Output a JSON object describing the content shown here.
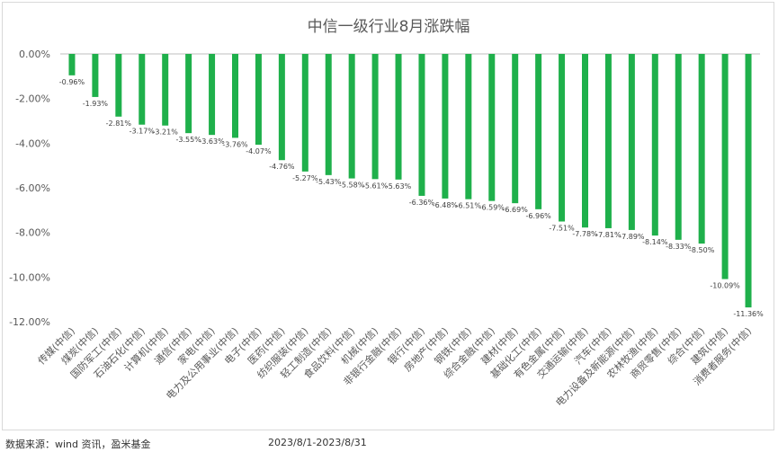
{
  "chart_data": {
    "type": "bar",
    "title": "中信一级行业8月涨跌幅",
    "xlabel": "",
    "ylabel": "",
    "ylim": [
      -12,
      0
    ],
    "yticks": [
      0,
      -2,
      -4,
      -6,
      -8,
      -10,
      -12
    ],
    "ytick_labels": [
      "0.00%",
      "-2.00%",
      "-4.00%",
      "-6.00%",
      "-8.00%",
      "-10.00%",
      "-12.00%"
    ],
    "grid": false,
    "legend": "none",
    "bar_color": "#1fb04b",
    "categories": [
      "传媒(中信)",
      "煤炭(中信)",
      "国防军工(中信)",
      "石油石化(中信)",
      "计算机(中信)",
      "通信(中信)",
      "家电(中信)",
      "电力及公用事业(中信)",
      "电子(中信)",
      "医药(中信)",
      "纺织服装(中信)",
      "轻工制造(中信)",
      "食品饮料(中信)",
      "机械(中信)",
      "非银行金融(中信)",
      "银行(中信)",
      "房地产(中信)",
      "钢铁(中信)",
      "综合金融(中信)",
      "建材(中信)",
      "基础化工(中信)",
      "有色金属(中信)",
      "交通运输(中信)",
      "汽车(中信)",
      "电力设备及新能源(中信)",
      "农林牧渔(中信)",
      "商贸零售(中信)",
      "综合(中信)",
      "建筑(中信)",
      "消费者服务(中信)"
    ],
    "values": [
      -0.96,
      -1.93,
      -2.81,
      -3.17,
      -3.21,
      -3.55,
      -3.63,
      -3.76,
      -4.07,
      -4.76,
      -5.27,
      -5.43,
      -5.58,
      -5.61,
      -5.63,
      -6.36,
      -6.48,
      -6.51,
      -6.59,
      -6.69,
      -6.96,
      -7.51,
      -7.78,
      -7.81,
      -7.89,
      -8.14,
      -8.33,
      -8.5,
      -10.09,
      -11.36
    ],
    "data_labels": [
      "-0.96%",
      "-1.93%",
      "-2.81%",
      "-3.17%",
      "-3.21%",
      "-3.55%",
      "-3.63%",
      "-3.76%",
      "-4.07%",
      "-4.76%",
      "-5.27%",
      "-5.43%",
      "-5.58%",
      "-5.61%",
      "-5.63%",
      "-6.36%",
      "-6.48%",
      "-6.51%",
      "-6.59%",
      "-6.69%",
      "-6.96%",
      "-7.51%",
      "-7.78%",
      "-7.81%",
      "-7.89%",
      "-8.14%",
      "-8.33%",
      "-8.50%",
      "-10.09%",
      "-11.36%"
    ]
  },
  "footer": {
    "source": "数据来源：wind 资讯，盈米基金",
    "period": "2023/8/1-2023/8/31"
  }
}
